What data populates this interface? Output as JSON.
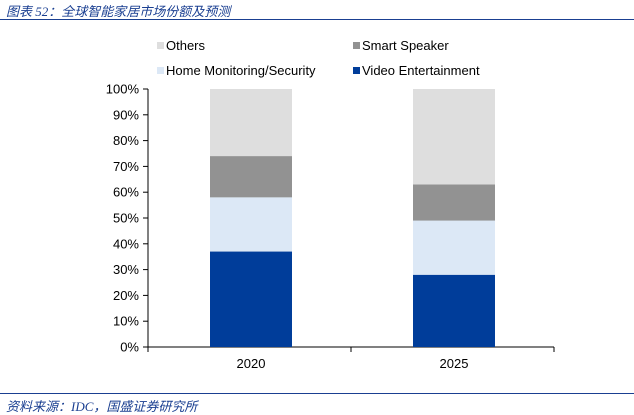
{
  "page": {
    "title": "图表 52：全球智能家居市场份额及预测",
    "source": "资料来源：IDC，国盛证券研究所"
  },
  "chart_data": {
    "type": "bar",
    "stacked": true,
    "categories": [
      "2020",
      "2025"
    ],
    "series": [
      {
        "name": "Video Entertainment",
        "color": "#003d9a",
        "values": [
          37,
          28
        ]
      },
      {
        "name": "Home Monitoring/Security",
        "color": "#dce8f6",
        "values": [
          21,
          21
        ]
      },
      {
        "name": "Smart Speaker",
        "color": "#929292",
        "values": [
          16,
          14
        ]
      },
      {
        "name": "Others",
        "color": "#dedede",
        "values": [
          26,
          37
        ]
      }
    ],
    "y_ticks": [
      "0%",
      "10%",
      "20%",
      "30%",
      "40%",
      "50%",
      "60%",
      "70%",
      "80%",
      "90%",
      "100%"
    ],
    "ylim": [
      0,
      100
    ],
    "legend_position": "top",
    "grid": false
  }
}
